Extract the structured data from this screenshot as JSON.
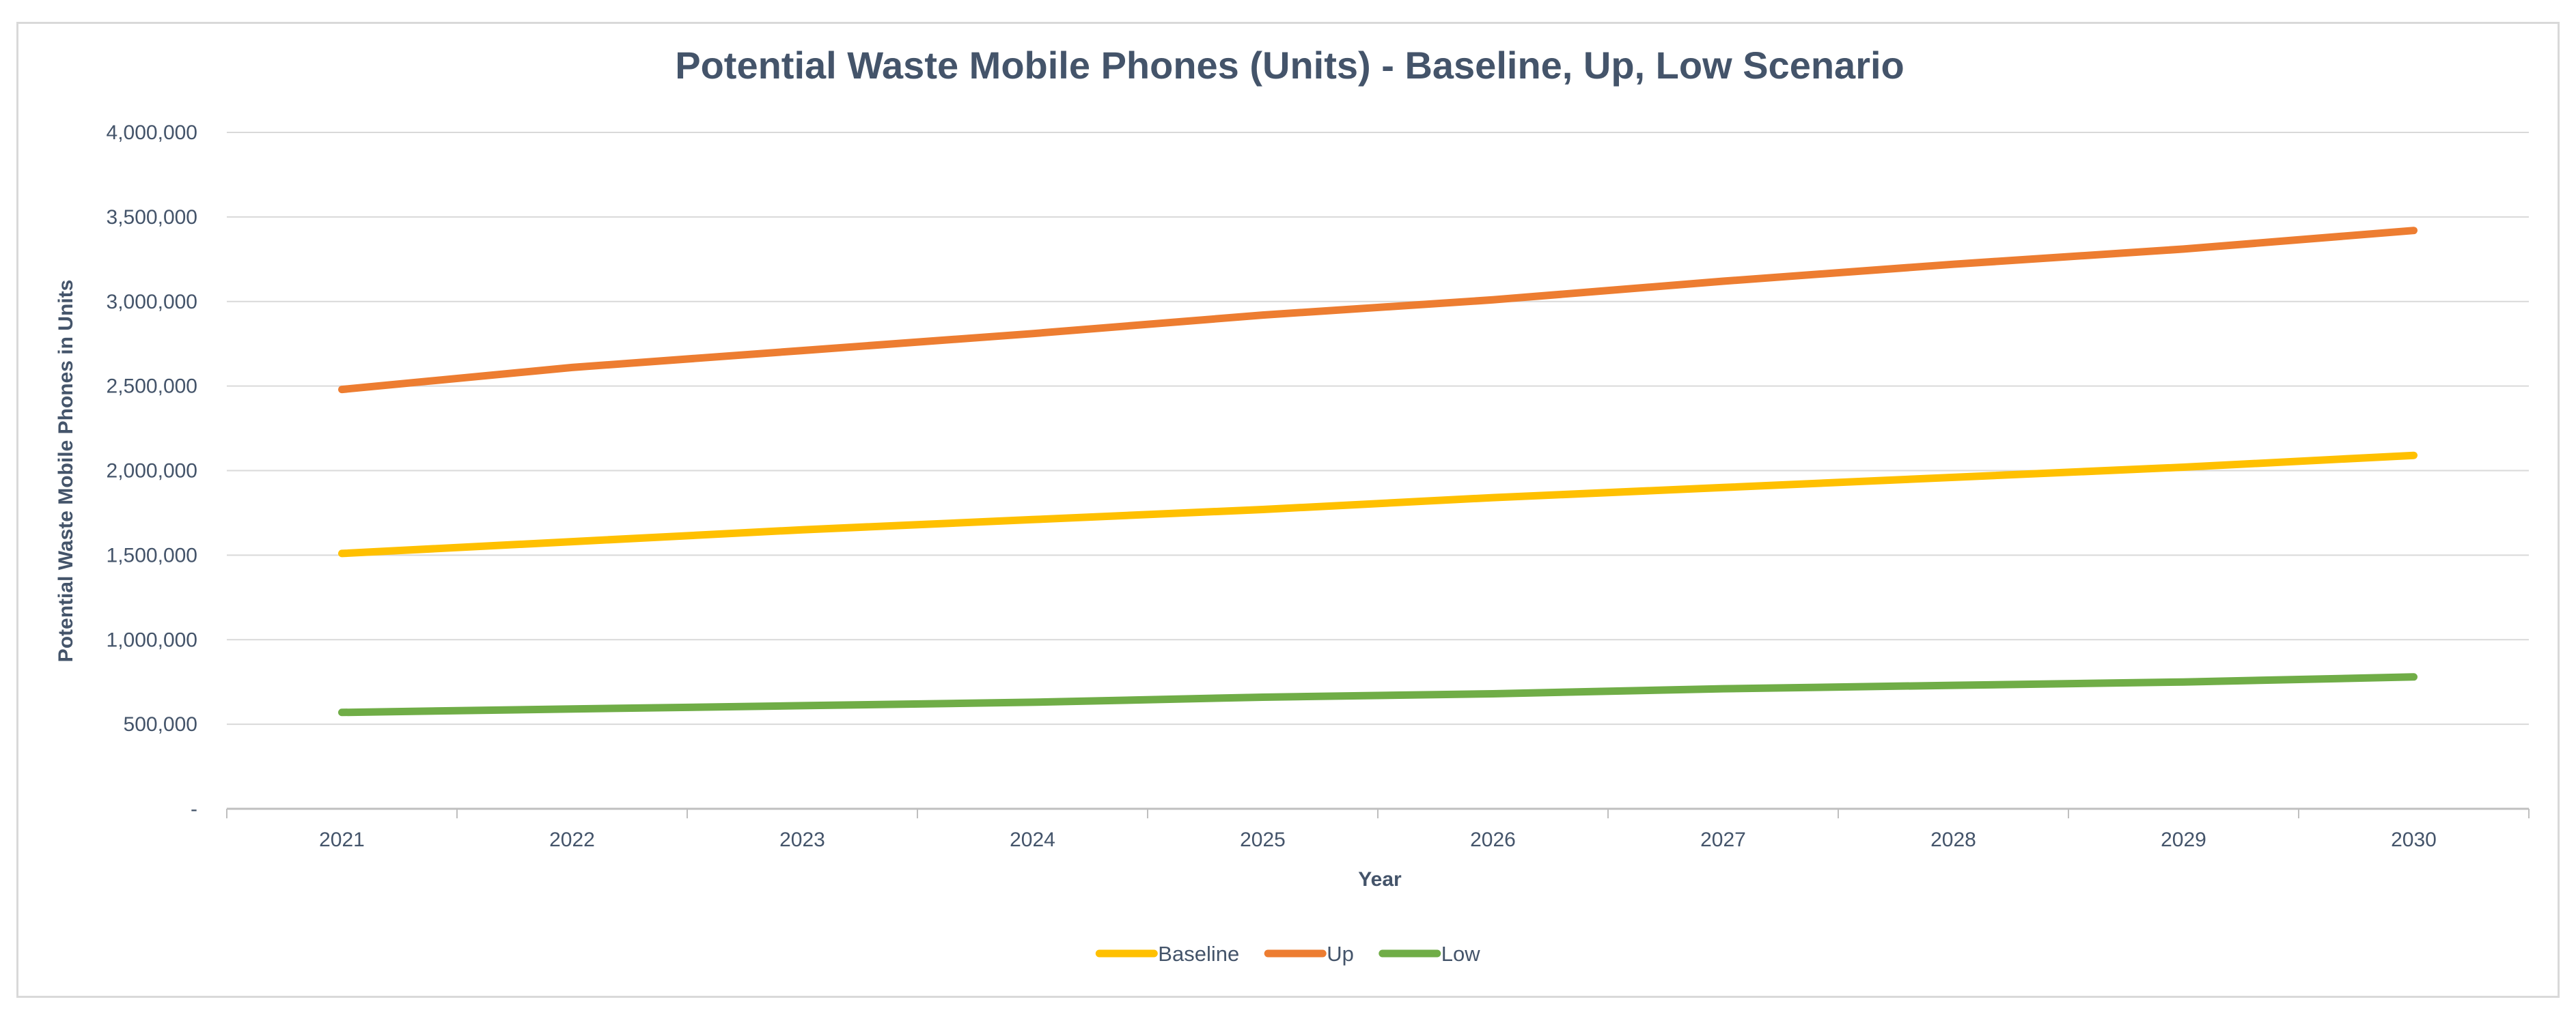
{
  "chart_data": {
    "type": "line",
    "title": "Potential Waste Mobile Phones (Units) - Baseline, Up, Low Scenario",
    "xlabel": "Year",
    "ylabel": "Potential Waste Mobile Phones in Units",
    "categories": [
      "2021",
      "2022",
      "2023",
      "2024",
      "2025",
      "2026",
      "2027",
      "2028",
      "2029",
      "2030"
    ],
    "ylim": [
      0,
      4000000
    ],
    "y_ticks": [
      {
        "value": 0,
        "label": "-"
      },
      {
        "value": 500000,
        "label": "500,000"
      },
      {
        "value": 1000000,
        "label": "1,000,000"
      },
      {
        "value": 1500000,
        "label": "1,500,000"
      },
      {
        "value": 2000000,
        "label": "2,000,000"
      },
      {
        "value": 2500000,
        "label": "2,500,000"
      },
      {
        "value": 3000000,
        "label": "3,000,000"
      },
      {
        "value": 3500000,
        "label": "3,500,000"
      },
      {
        "value": 4000000,
        "label": "4,000,000"
      }
    ],
    "grid": true,
    "legend_position": "bottom-center",
    "series": [
      {
        "name": "Baseline",
        "color": "#ffc000",
        "values": [
          1510000,
          1580000,
          1650000,
          1710000,
          1770000,
          1840000,
          1900000,
          1960000,
          2020000,
          2090000
        ]
      },
      {
        "name": "Up",
        "color": "#ed7d31",
        "values": [
          2480000,
          2610000,
          2710000,
          2810000,
          2920000,
          3010000,
          3120000,
          3220000,
          3310000,
          3420000
        ]
      },
      {
        "name": "Low",
        "color": "#70ad47",
        "values": [
          570000,
          590000,
          610000,
          630000,
          660000,
          680000,
          710000,
          730000,
          750000,
          780000
        ]
      }
    ],
    "colors": {
      "text": "#44546a",
      "grid": "#d9d9d9",
      "axis": "#bfbfbf"
    }
  }
}
